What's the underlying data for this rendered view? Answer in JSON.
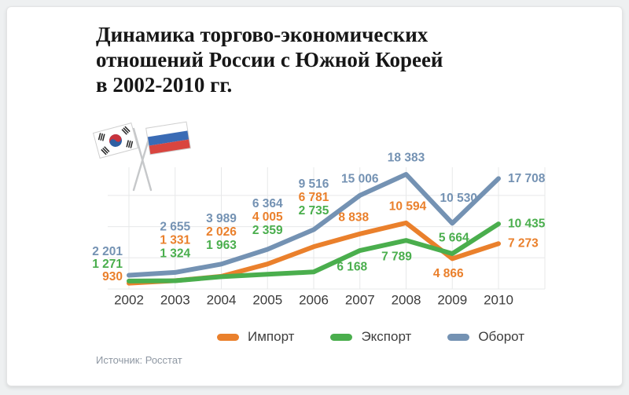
{
  "header": {
    "title_lines": [
      "Динамика торгово-экономических",
      "отношений России с Южной Кореей",
      "в 2002-2010 гг."
    ]
  },
  "flags": {
    "left": "south-korea-flag",
    "right": "russia-flag"
  },
  "chart_data": {
    "type": "line",
    "title": "Динамика торгово-экономических отношений России с Южной Кореей в 2002-2010 гг.",
    "categories": [
      "2002",
      "2003",
      "2004",
      "2005",
      "2006",
      "2007",
      "2008",
      "2009",
      "2010"
    ],
    "series": [
      {
        "name": "Импорт",
        "color": "#EA802C",
        "values": [
          930,
          1331,
          2026,
          4005,
          6781,
          8838,
          10594,
          4866,
          7273
        ]
      },
      {
        "name": "Экспорт",
        "color": "#4AAE4D",
        "values": [
          1271,
          1324,
          1963,
          2359,
          2735,
          6168,
          7789,
          5664,
          10435
        ]
      },
      {
        "name": "Оборот",
        "color": "#7492B3",
        "values": [
          2201,
          2655,
          3989,
          6364,
          9516,
          15006,
          18383,
          10530,
          17708
        ]
      }
    ],
    "data_labels": true,
    "grid": true,
    "gridline_step": 5000,
    "ylim": [
      0,
      19500
    ],
    "legend_position": "bottom",
    "xlabel": "",
    "ylabel": ""
  },
  "footer": {
    "source": "Источник: Росстат"
  },
  "colors": {
    "grid": "#e7e8e9",
    "year_label": "#3b3b3b",
    "pole": "#c6c8ca"
  }
}
